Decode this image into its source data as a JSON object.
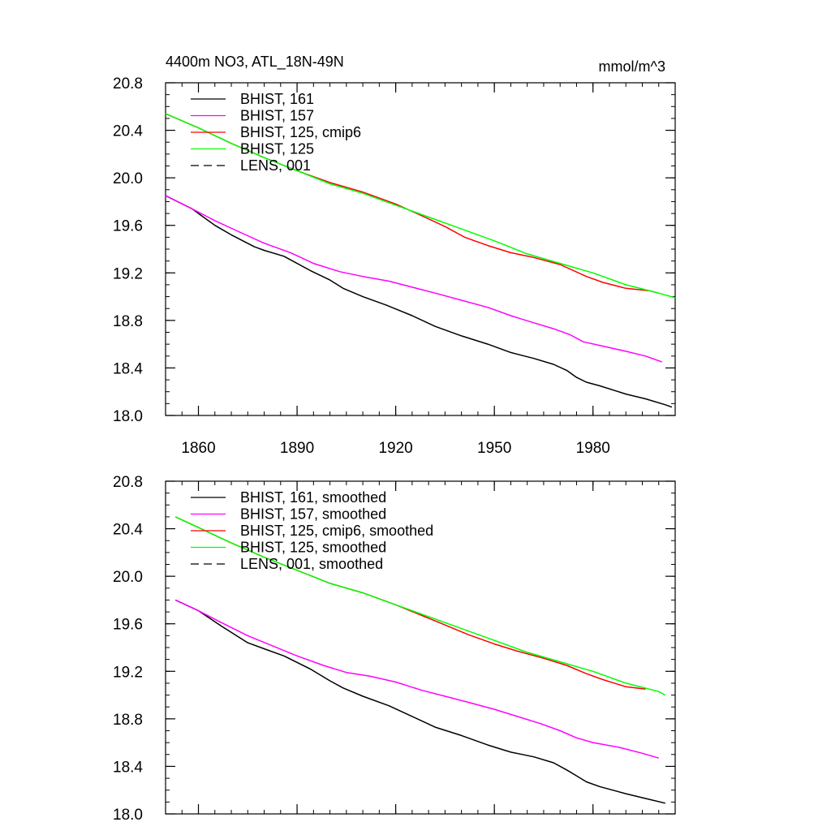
{
  "figure": {
    "title_left": "4400m NO3, ATL_18N-49N",
    "title_right": "mmol/m^3"
  },
  "chart_data": [
    {
      "type": "line",
      "title": "4400m NO3, ATL_18N-49N",
      "units": "mmol/m^3",
      "xlim": [
        1850,
        2005
      ],
      "ylim": [
        18.0,
        20.8
      ],
      "x_ticks": [
        1860,
        1890,
        1920,
        1950,
        1980
      ],
      "x_tick_labels": [
        "1860",
        "1890",
        "1920",
        "1950",
        "1980"
      ],
      "y_ticks": [
        18.0,
        18.4,
        18.8,
        19.2,
        19.6,
        20.0,
        20.4,
        20.8
      ],
      "y_tick_labels": [
        "18.0",
        "18.4",
        "18.8",
        "19.2",
        "19.6",
        "20.0",
        "20.4",
        "20.8"
      ],
      "legend": [
        {
          "label": "BHIST, 161",
          "color": "#000000",
          "dash": false
        },
        {
          "label": "BHIST, 157",
          "color": "#ff00ff",
          "dash": false
        },
        {
          "label": "BHIST, 125, cmip6",
          "color": "#ff0000",
          "dash": false
        },
        {
          "label": "BHIST, 125",
          "color": "#00ff00",
          "dash": false
        },
        {
          "label": "LENS, 001",
          "color": "#000000",
          "dash": true
        }
      ],
      "series": [
        {
          "name": "BHIST, 161",
          "color": "#000000",
          "x": [
            1850,
            1858,
            1861,
            1865,
            1870,
            1877,
            1880,
            1886,
            1894,
            1900,
            1904,
            1910,
            1917,
            1925,
            1932,
            1940,
            1948,
            1955,
            1962,
            1968,
            1972,
            1975,
            1978,
            1982,
            1990,
            1996,
            2002,
            2004
          ],
          "y": [
            19.85,
            19.74,
            19.68,
            19.6,
            19.52,
            19.42,
            19.39,
            19.34,
            19.22,
            19.14,
            19.07,
            19.0,
            18.93,
            18.84,
            18.75,
            18.67,
            18.6,
            18.53,
            18.48,
            18.43,
            18.38,
            18.32,
            18.28,
            18.25,
            18.18,
            18.14,
            18.09,
            18.07
          ]
        },
        {
          "name": "BHIST, 157",
          "color": "#ff00ff",
          "x": [
            1850,
            1858,
            1865,
            1872,
            1880,
            1888,
            1895,
            1903,
            1910,
            1918,
            1925,
            1932,
            1940,
            1948,
            1955,
            1962,
            1968,
            1973,
            1977,
            1982,
            1990,
            1996,
            2001
          ],
          "y": [
            19.85,
            19.74,
            19.64,
            19.55,
            19.45,
            19.37,
            19.28,
            19.21,
            19.17,
            19.13,
            19.08,
            19.03,
            18.97,
            18.91,
            18.84,
            18.78,
            18.73,
            18.68,
            18.62,
            18.59,
            18.54,
            18.5,
            18.45
          ]
        },
        {
          "name": "BHIST, 125, cmip6",
          "color": "#ff0000",
          "x": [
            1850,
            1860,
            1870,
            1880,
            1890,
            1900,
            1910,
            1920,
            1928,
            1935,
            1941,
            1948,
            1955,
            1962,
            1970,
            1978,
            1983,
            1990,
            1997,
            2000
          ],
          "y": [
            20.54,
            20.42,
            20.29,
            20.17,
            20.06,
            19.96,
            19.88,
            19.78,
            19.68,
            19.59,
            19.5,
            19.43,
            19.37,
            19.33,
            19.27,
            19.17,
            19.12,
            19.07,
            19.05,
            19.03
          ]
        },
        {
          "name": "BHIST, 125",
          "color": "#00ff00",
          "x": [
            1850,
            1860,
            1870,
            1880,
            1890,
            1900,
            1910,
            1920,
            1930,
            1940,
            1950,
            1960,
            1970,
            1980,
            1990,
            2000,
            2005
          ],
          "y": [
            20.54,
            20.42,
            20.29,
            20.17,
            20.06,
            19.95,
            19.87,
            19.77,
            19.67,
            19.57,
            19.47,
            19.36,
            19.28,
            19.2,
            19.1,
            19.03,
            18.99
          ]
        }
      ]
    },
    {
      "type": "line",
      "title": "",
      "xlim": [
        1850,
        2005
      ],
      "ylim": [
        18.0,
        20.8
      ],
      "x_ticks": [
        1860,
        1890,
        1920,
        1950,
        1980
      ],
      "x_tick_labels": [],
      "y_ticks": [
        18.0,
        18.4,
        18.8,
        19.2,
        19.6,
        20.0,
        20.4,
        20.8
      ],
      "y_tick_labels": [
        "18.0",
        "18.4",
        "18.8",
        "19.2",
        "19.6",
        "20.0",
        "20.4",
        "20.8"
      ],
      "legend": [
        {
          "label": "BHIST, 161, smoothed",
          "color": "#000000",
          "dash": false
        },
        {
          "label": "BHIST, 157, smoothed",
          "color": "#ff00ff",
          "dash": false
        },
        {
          "label": "BHIST, 125, cmip6, smoothed",
          "color": "#ff0000",
          "dash": false
        },
        {
          "label": "BHIST, 125, smoothed",
          "color": "#00ff00",
          "dash": false
        },
        {
          "label": "LENS, 001, smoothed",
          "color": "#000000",
          "dash": true
        }
      ],
      "series": [
        {
          "name": "BHIST, 161, smoothed",
          "color": "#000000",
          "x": [
            1853,
            1860,
            1867,
            1875,
            1880,
            1886,
            1894,
            1900,
            1904,
            1910,
            1918,
            1925,
            1932,
            1940,
            1948,
            1955,
            1962,
            1968,
            1972,
            1975,
            1978,
            1982,
            1990,
            1996,
            2002
          ],
          "y": [
            19.8,
            19.71,
            19.58,
            19.44,
            19.39,
            19.33,
            19.22,
            19.12,
            19.06,
            18.99,
            18.91,
            18.82,
            18.73,
            18.66,
            18.58,
            18.52,
            18.48,
            18.43,
            18.37,
            18.32,
            18.27,
            18.23,
            18.17,
            18.13,
            18.09
          ]
        },
        {
          "name": "BHIST, 157, smoothed",
          "color": "#ff00ff",
          "x": [
            1853,
            1860,
            1867,
            1875,
            1882,
            1890,
            1898,
            1905,
            1912,
            1920,
            1928,
            1935,
            1942,
            1950,
            1957,
            1964,
            1970,
            1975,
            1980,
            1988,
            1995,
            2000
          ],
          "y": [
            19.8,
            19.71,
            19.61,
            19.5,
            19.42,
            19.33,
            19.25,
            19.19,
            19.16,
            19.11,
            19.04,
            18.99,
            18.94,
            18.88,
            18.82,
            18.76,
            18.7,
            18.64,
            18.6,
            18.56,
            18.51,
            18.47
          ]
        },
        {
          "name": "BHIST, 125, cmip6, smoothed",
          "color": "#ff0000",
          "x": [
            1853,
            1860,
            1870,
            1880,
            1890,
            1900,
            1910,
            1920,
            1928,
            1935,
            1942,
            1950,
            1957,
            1965,
            1972,
            1978,
            1983,
            1990,
            1996
          ],
          "y": [
            20.5,
            20.41,
            20.28,
            20.16,
            20.05,
            19.94,
            19.86,
            19.76,
            19.67,
            19.59,
            19.51,
            19.43,
            19.37,
            19.31,
            19.25,
            19.18,
            19.13,
            19.07,
            19.05
          ]
        },
        {
          "name": "BHIST, 125, smoothed",
          "color": "#00ff00",
          "x": [
            1853,
            1860,
            1870,
            1880,
            1890,
            1900,
            1910,
            1920,
            1930,
            1940,
            1950,
            1960,
            1970,
            1980,
            1990,
            2000,
            2002
          ],
          "y": [
            20.5,
            20.41,
            20.28,
            20.16,
            20.05,
            19.94,
            19.86,
            19.76,
            19.66,
            19.56,
            19.46,
            19.36,
            19.28,
            19.2,
            19.1,
            19.03,
            19.0
          ]
        }
      ]
    }
  ]
}
